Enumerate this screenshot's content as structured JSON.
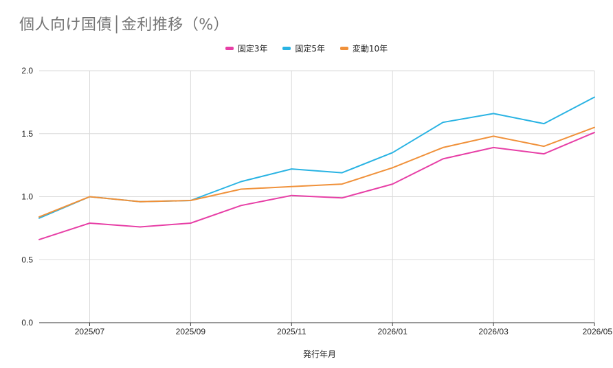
{
  "chart_title": "個人向け国債│金利推移（%）",
  "colors": {
    "fixed3": "#e73fa6",
    "fixed5": "#29b3e3",
    "floating10": "#f0913a",
    "grid": "#d9d9d9",
    "axis": "#333333"
  },
  "chart_data": {
    "type": "line",
    "title": "個人向け国債│金利推移（%）",
    "xlabel": "発行年月",
    "ylabel": "",
    "ylim": [
      0,
      2.0
    ],
    "y_ticks": [
      "0.0",
      "0.5",
      "1.0",
      "1.5",
      "2.0"
    ],
    "x_tick_labels": [
      "2025/07",
      "2025/09",
      "2025/11",
      "2026/01",
      "2026/03",
      "2026/05"
    ],
    "categories": [
      "2025/06",
      "2025/07",
      "2025/08",
      "2025/09",
      "2025/10",
      "2025/11",
      "2025/12",
      "2026/01",
      "2026/02",
      "2026/03",
      "2026/04",
      "2026/05"
    ],
    "grid": true,
    "legend_position": "top",
    "series": [
      {
        "name": "固定3年",
        "color": "#e73fa6",
        "values": [
          0.66,
          0.79,
          0.76,
          0.79,
          0.93,
          1.01,
          0.99,
          1.1,
          1.3,
          1.39,
          1.34,
          1.51
        ]
      },
      {
        "name": "固定5年",
        "color": "#29b3e3",
        "values": [
          0.83,
          1.0,
          0.96,
          0.97,
          1.12,
          1.22,
          1.19,
          1.35,
          1.59,
          1.66,
          1.58,
          1.79
        ]
      },
      {
        "name": "変動10年",
        "color": "#f0913a",
        "values": [
          0.84,
          1.0,
          0.96,
          0.97,
          1.06,
          1.08,
          1.1,
          1.23,
          1.39,
          1.48,
          1.4,
          1.55
        ]
      }
    ]
  }
}
